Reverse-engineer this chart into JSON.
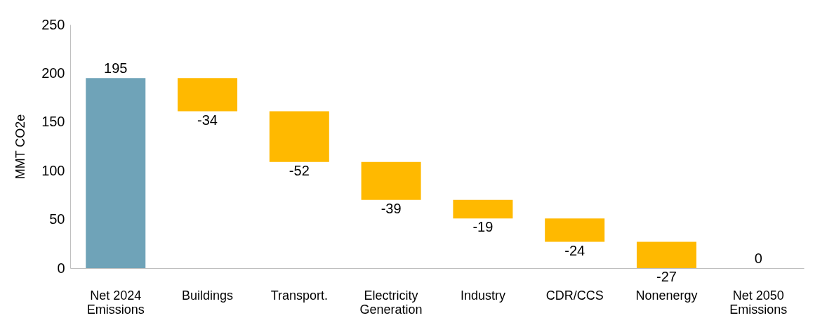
{
  "chart_data": {
    "type": "bar",
    "ylabel": "MMT CO2e",
    "categories": [
      "Net 2024 Emissions",
      "Buildings",
      "Transport.",
      "Electricity Generation",
      "Industry",
      "CDR/CCS",
      "Nonenergy",
      "Net 2050 Emissions"
    ],
    "values": [
      195,
      -34,
      -52,
      -39,
      -19,
      -24,
      -27,
      0
    ],
    "base": [
      null,
      195,
      161,
      109,
      70,
      51,
      27,
      null
    ],
    "colors": [
      "#6fa3b8",
      "#ffb900",
      "#ffb900",
      "#ffb900",
      "#ffb900",
      "#ffb900",
      "#ffb900",
      "#ffb900"
    ],
    "ylim": [
      0,
      250
    ],
    "yticks": [
      0,
      50,
      100,
      150,
      200,
      250
    ],
    "data_labels": true,
    "grid": false
  }
}
